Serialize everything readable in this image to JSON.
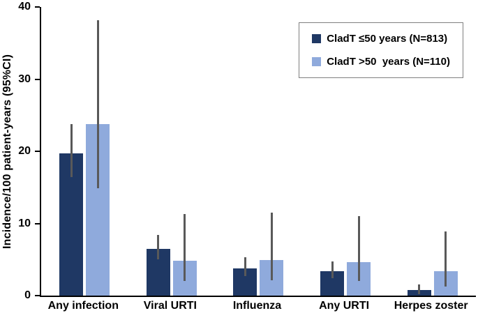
{
  "chart_data": {
    "type": "bar",
    "title": "",
    "xlabel": "",
    "ylabel": "Incidence/100 patient-years (95%CI)",
    "ylim": [
      0,
      40
    ],
    "yticks": [
      0,
      10,
      20,
      30,
      40
    ],
    "grid": false,
    "legend_position": "top-right",
    "error_bar_color": "#595959",
    "categories": [
      "Any infection",
      "Viral URTI",
      "Influenza",
      "Any URTI",
      "Herpes zoster"
    ],
    "series": [
      {
        "name": "CladT ≤50 years (N=813)",
        "color": "#1F3864",
        "values": [
          19.7,
          6.5,
          3.8,
          3.4,
          0.8
        ],
        "ci_low": [
          16.4,
          5.0,
          2.7,
          2.4,
          0.2
        ],
        "ci_high": [
          23.8,
          8.4,
          5.3,
          4.7,
          1.5
        ]
      },
      {
        "name": "CladT >50  years (N=110)",
        "color": "#8FAADC",
        "values": [
          23.8,
          4.8,
          4.9,
          4.6,
          3.4
        ],
        "ci_low": [
          14.9,
          2.0,
          2.1,
          2.0,
          1.3
        ],
        "ci_high": [
          38.2,
          11.3,
          11.5,
          11.0,
          8.9
        ]
      }
    ]
  }
}
